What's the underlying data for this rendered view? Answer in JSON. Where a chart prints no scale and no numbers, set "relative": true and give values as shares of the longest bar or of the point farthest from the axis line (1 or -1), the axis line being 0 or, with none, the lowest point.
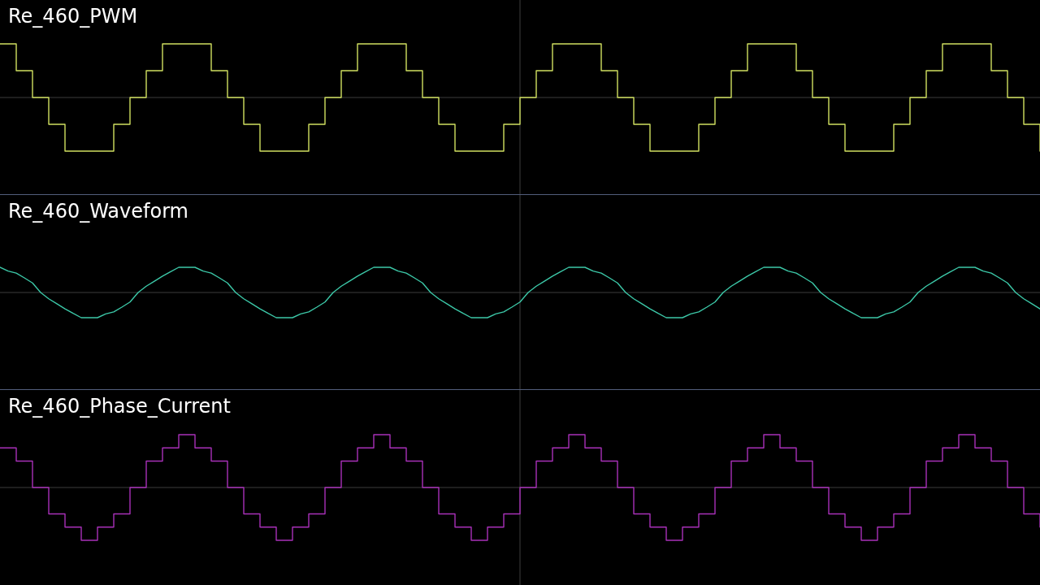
{
  "chart_data": [
    {
      "type": "step",
      "title": "Re_460_PWM",
      "relative": true,
      "color": "#d0e060",
      "categories": [
        null,
        null,
        null,
        null,
        null,
        null,
        null,
        null,
        null,
        null,
        null,
        null,
        null,
        null,
        null,
        null,
        null,
        null,
        null,
        null,
        null,
        null,
        null,
        null,
        null,
        null,
        null,
        null,
        null,
        null,
        null,
        null,
        null,
        null,
        null,
        null,
        null,
        null,
        null,
        null,
        null,
        null,
        null,
        null,
        null,
        null,
        null,
        null,
        null,
        null,
        null,
        null,
        null,
        null,
        null,
        null,
        null,
        null,
        null,
        null,
        null,
        null,
        null,
        null,
        null
      ],
      "values": [
        1,
        0.5,
        0,
        -0.5,
        -1,
        -1,
        -1,
        -0.5,
        0,
        0.5,
        1,
        1,
        1,
        0.5,
        0,
        -0.5,
        -1,
        -1,
        -1,
        -0.5,
        0,
        0.5,
        1,
        1,
        1,
        0.5,
        0,
        -0.5,
        -1,
        -1,
        -1,
        -0.5,
        0,
        0.5,
        1,
        1,
        1,
        0.5,
        0,
        -0.5,
        -1,
        -1,
        -1,
        -0.5,
        0,
        0.5,
        1,
        1,
        1,
        0.5,
        0,
        -0.5,
        -1,
        -1,
        -1,
        -0.5,
        0,
        0.5,
        1,
        1,
        1,
        0.5,
        0,
        -0.5,
        -1
      ]
    },
    {
      "type": "line",
      "title": "Re_460_Waveform",
      "relative": true,
      "color": "#3cc8a8",
      "categories": [
        null,
        null,
        null,
        null,
        null,
        null,
        null,
        null,
        null,
        null,
        null,
        null,
        null,
        null,
        null,
        null,
        null,
        null,
        null,
        null,
        null,
        null,
        null,
        null,
        null,
        null,
        null,
        null,
        null,
        null,
        null,
        null,
        null,
        null,
        null,
        null,
        null,
        null,
        null,
        null,
        null,
        null,
        null,
        null,
        null,
        null,
        null,
        null,
        null,
        null,
        null,
        null,
        null,
        null,
        null,
        null,
        null,
        null,
        null,
        null,
        null,
        null,
        null,
        null,
        null,
        null,
        null,
        null,
        null,
        null,
        null,
        null,
        null,
        null,
        null,
        null,
        null,
        null,
        null,
        null,
        null,
        null,
        null,
        null,
        null,
        null,
        null,
        null,
        null,
        null,
        null,
        null,
        null,
        null,
        null,
        null,
        null,
        null,
        null,
        null,
        null,
        null,
        null,
        null,
        null,
        null,
        null,
        null,
        null,
        null,
        null,
        null,
        null,
        null,
        null,
        null,
        null,
        null,
        null,
        null,
        null,
        null,
        null,
        null,
        null,
        null,
        null,
        null,
        null
      ],
      "values": [
        1,
        0.85,
        0.77,
        0.58,
        0.38,
        0,
        -0.25,
        -0.45,
        -0.65,
        -0.83,
        -1,
        -1,
        -1,
        -0.85,
        -0.77,
        -0.58,
        -0.38,
        0,
        0.25,
        0.45,
        0.65,
        0.83,
        1,
        1,
        1,
        0.85,
        0.77,
        0.58,
        0.38,
        0,
        -0.25,
        -0.45,
        -0.65,
        -0.83,
        -1,
        -1,
        -1,
        -0.85,
        -0.77,
        -0.58,
        -0.38,
        0,
        0.25,
        0.45,
        0.65,
        0.83,
        1,
        1,
        1,
        0.85,
        0.77,
        0.58,
        0.38,
        0,
        -0.25,
        -0.45,
        -0.65,
        -0.83,
        -1,
        -1,
        -1,
        -0.85,
        -0.77,
        -0.58,
        -0.38,
        0,
        0.25,
        0.45,
        0.65,
        0.83,
        1,
        1,
        1,
        0.85,
        0.77,
        0.58,
        0.38,
        0,
        -0.25,
        -0.45,
        -0.65,
        -0.83,
        -1,
        -1,
        -1,
        -0.85,
        -0.77,
        -0.58,
        -0.38,
        0,
        0.25,
        0.45,
        0.65,
        0.83,
        1,
        1,
        1,
        0.85,
        0.77,
        0.58,
        0.38,
        0,
        -0.25,
        -0.45,
        -0.65,
        -0.83,
        -1,
        -1,
        -1,
        -0.85,
        -0.77,
        -0.58,
        -0.38,
        0,
        0.25,
        0.45,
        0.65,
        0.83,
        1,
        1,
        1,
        0.85,
        0.77,
        0.58,
        0.38,
        0,
        -0.25,
        -0.45,
        -0.65
      ]
    },
    {
      "type": "step",
      "title": "Re_460_Phase_Current",
      "relative": true,
      "color": "#a830b8",
      "categories": [
        null,
        null,
        null,
        null,
        null,
        null,
        null,
        null,
        null,
        null,
        null,
        null,
        null,
        null,
        null,
        null,
        null,
        null,
        null,
        null,
        null,
        null,
        null,
        null,
        null,
        null,
        null,
        null,
        null,
        null,
        null,
        null,
        null,
        null,
        null,
        null,
        null,
        null,
        null,
        null,
        null,
        null,
        null,
        null,
        null,
        null,
        null,
        null,
        null,
        null,
        null,
        null,
        null,
        null,
        null,
        null,
        null,
        null,
        null,
        null,
        null,
        null,
        null,
        null,
        null
      ],
      "values": [
        0.75,
        0.5,
        0,
        -0.5,
        -0.75,
        -1,
        -0.75,
        -0.5,
        0,
        0.5,
        0.75,
        1,
        0.75,
        0.5,
        0,
        -0.5,
        -0.75,
        -1,
        -0.75,
        -0.5,
        0,
        0.5,
        0.75,
        1,
        0.75,
        0.5,
        0,
        -0.5,
        -0.75,
        -1,
        -0.75,
        -0.5,
        0,
        0.5,
        0.75,
        1,
        0.75,
        0.5,
        0,
        -0.5,
        -0.75,
        -1,
        -0.75,
        -0.5,
        0,
        0.5,
        0.75,
        1,
        0.75,
        0.5,
        0,
        -0.5,
        -0.75,
        -1,
        -0.75,
        -0.5,
        0,
        0.5,
        0.75,
        1,
        0.75,
        0.5,
        0,
        -0.5,
        -0.75
      ]
    }
  ]
}
